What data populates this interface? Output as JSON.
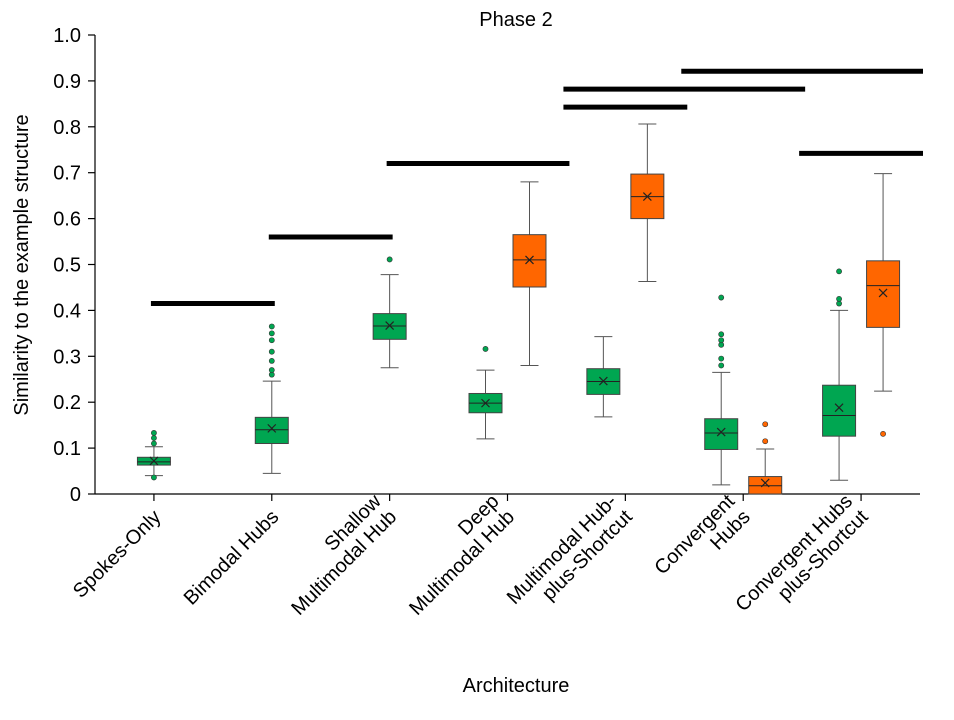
{
  "chart_data": {
    "type": "box",
    "title": "Phase 2",
    "xlabel": "Architecture",
    "ylabel": "Similarity to the example structure",
    "ylim": [
      0,
      1.0
    ],
    "yticks": [
      "0",
      "0.1",
      "0.2",
      "0.3",
      "0.4",
      "0.5",
      "0.6",
      "0.7",
      "0.8",
      "0.9",
      "1.0"
    ],
    "ytick_values": [
      0,
      0.1,
      0.2,
      0.3,
      0.4,
      0.5,
      0.6,
      0.7,
      0.8,
      0.9,
      1.0
    ],
    "categories": [
      {
        "lines": [
          "Spokes-Only"
        ]
      },
      {
        "lines": [
          "Bimodal Hubs"
        ]
      },
      {
        "lines": [
          "Shallow",
          "Multimodal Hub"
        ]
      },
      {
        "lines": [
          "Deep",
          "Multimodal Hub"
        ]
      },
      {
        "lines": [
          "Multimodal Hub-",
          "plus-Shortcut"
        ]
      },
      {
        "lines": [
          "Convergent",
          "Hubs"
        ]
      },
      {
        "lines": [
          "Convergent Hubs",
          "plus-Shortcut"
        ]
      }
    ],
    "colors": {
      "green": "#00a651",
      "orange": "#ff6600"
    },
    "boxes": [
      {
        "category": 0,
        "color": "green",
        "whislo": 0.04,
        "q1": 0.063,
        "med": 0.07,
        "q3": 0.08,
        "whishi": 0.103,
        "mean": 0.072,
        "fliers": [
          0.036,
          0.11,
          0.122,
          0.133
        ]
      },
      {
        "category": 1,
        "color": "green",
        "whislo": 0.045,
        "q1": 0.11,
        "med": 0.14,
        "q3": 0.167,
        "whishi": 0.246,
        "mean": 0.143,
        "fliers": [
          0.26,
          0.27,
          0.29,
          0.31,
          0.335,
          0.35,
          0.365
        ]
      },
      {
        "category": 2,
        "color": "green",
        "whislo": 0.275,
        "q1": 0.337,
        "med": 0.366,
        "q3": 0.393,
        "whishi": 0.478,
        "mean": 0.367,
        "fliers": [
          0.511
        ]
      },
      {
        "category": 3,
        "color": "green",
        "whislo": 0.12,
        "q1": 0.177,
        "med": 0.198,
        "q3": 0.219,
        "whishi": 0.27,
        "mean": 0.198,
        "fliers": [
          0.316
        ]
      },
      {
        "category": 3,
        "color": "orange",
        "whislo": 0.28,
        "q1": 0.451,
        "med": 0.51,
        "q3": 0.565,
        "whishi": 0.68,
        "mean": 0.51,
        "fliers": []
      },
      {
        "category": 4,
        "color": "green",
        "whislo": 0.168,
        "q1": 0.217,
        "med": 0.245,
        "q3": 0.273,
        "whishi": 0.343,
        "mean": 0.246,
        "fliers": []
      },
      {
        "category": 4,
        "color": "orange",
        "whislo": 0.463,
        "q1": 0.6,
        "med": 0.648,
        "q3": 0.697,
        "whishi": 0.806,
        "mean": 0.648,
        "fliers": []
      },
      {
        "category": 5,
        "color": "green",
        "whislo": 0.02,
        "q1": 0.097,
        "med": 0.133,
        "q3": 0.164,
        "whishi": 0.265,
        "mean": 0.135,
        "fliers": [
          0.28,
          0.295,
          0.325,
          0.335,
          0.348,
          0.428
        ]
      },
      {
        "category": 5,
        "color": "orange",
        "whislo": 0,
        "q1": 0,
        "med": 0.018,
        "q3": 0.038,
        "whishi": 0.098,
        "mean": 0.024,
        "fliers": [
          0.115,
          0.152
        ]
      },
      {
        "category": 6,
        "color": "green",
        "whislo": 0.03,
        "q1": 0.126,
        "med": 0.171,
        "q3": 0.237,
        "whishi": 0.4,
        "mean": 0.188,
        "fliers": [
          0.415,
          0.425,
          0.485
        ]
      },
      {
        "category": 6,
        "color": "orange",
        "whislo": 0.224,
        "q1": 0.363,
        "med": 0.454,
        "q3": 0.508,
        "whishi": 0.698,
        "mean": 0.438,
        "fliers": [
          0.131
        ]
      }
    ],
    "significance_bars": [
      {
        "from": 0,
        "to": 1,
        "y": 0.415
      },
      {
        "from": 1,
        "to": 2,
        "y": 0.56
      },
      {
        "from": 2,
        "to": 3.5,
        "y": 0.72
      },
      {
        "from": 3.5,
        "to": 4.5,
        "y": 0.843
      },
      {
        "from": 3.5,
        "to": 5.5,
        "y": 0.882
      },
      {
        "from": 4.5,
        "to": 6.5,
        "y": 0.921
      },
      {
        "from": 5.5,
        "to": 6.5,
        "y": 0.742
      }
    ]
  }
}
